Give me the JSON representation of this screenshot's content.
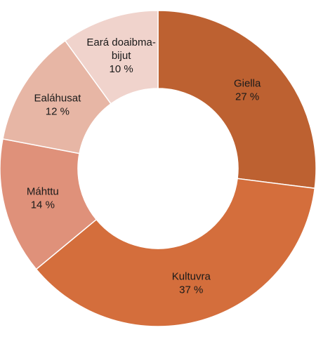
{
  "chart_data": {
    "type": "pie",
    "title": "",
    "slices": [
      {
        "label": "Giella",
        "value": 27,
        "value_label": "27 %",
        "color": "#bd6131"
      },
      {
        "label": "Kultuvra",
        "value": 37,
        "value_label": "37 %",
        "color": "#d46e3c"
      },
      {
        "label": "Máhttu",
        "value": 14,
        "value_label": "14 %",
        "color": "#df917a"
      },
      {
        "label": "Ealáhusat",
        "value": 12,
        "value_label": "12 %",
        "color": "#e7b6a5"
      },
      {
        "label": "Eará doaibma-bijut",
        "label_lines": [
          "Eará doaibma-",
          "bijut"
        ],
        "value": 10,
        "value_label": "10 %",
        "color": "#f0d3cc"
      }
    ]
  }
}
